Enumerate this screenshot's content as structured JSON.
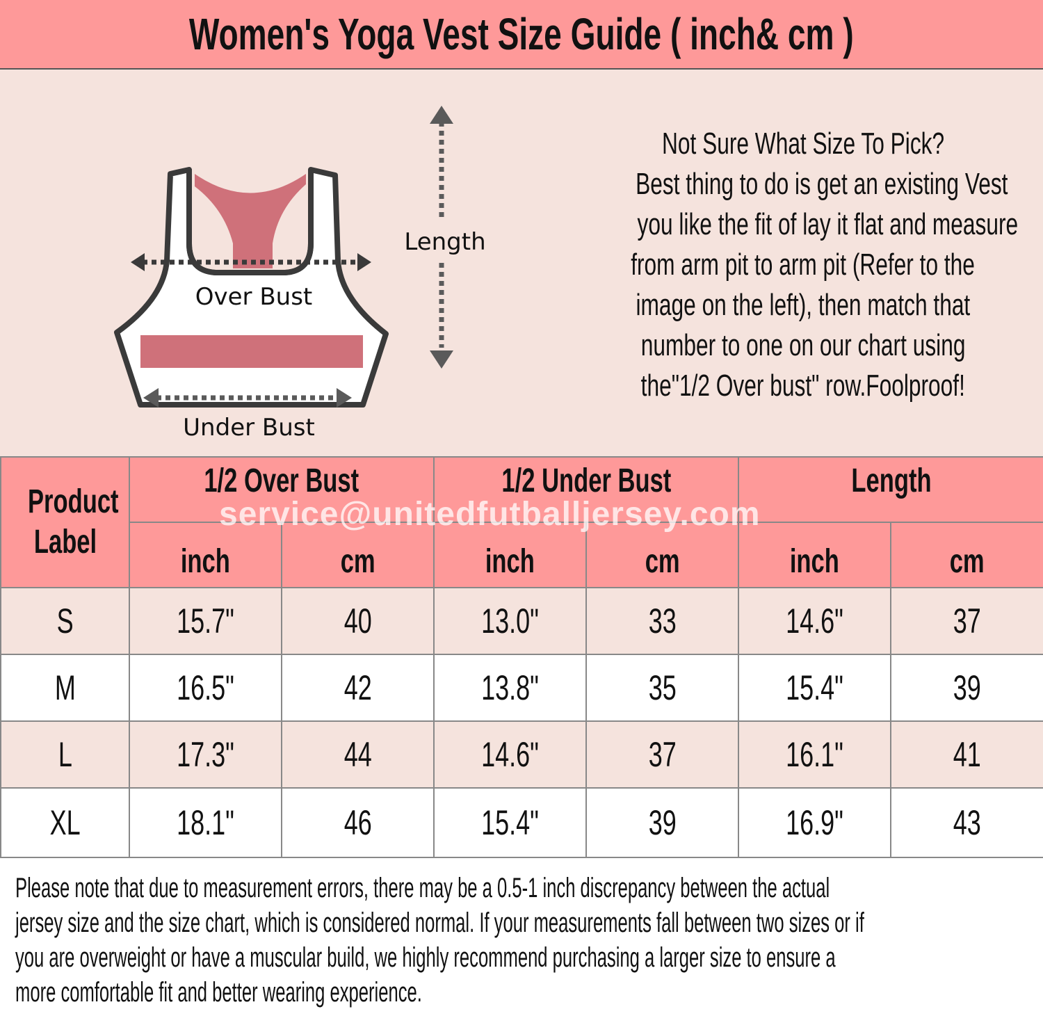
{
  "title": "Women's Yoga Vest Size Guide ( inch& cm )",
  "illustration": {
    "over_bust_label": "Over Bust",
    "under_bust_label": "Under Bust",
    "length_label": "Length",
    "colors": {
      "accent_pink": "#cf717a",
      "outline": "#3a3a3a",
      "arrow": "#5a5a5a"
    }
  },
  "tip_lines": [
    "Not Sure What Size To Pick?",
    "Best thing to do is get an existing Vest",
    "you like the fit of lay it flat and measure",
    "from arm pit to arm pit (Refer to the",
    "image on the left), then match that",
    "number to one on our chart using",
    "the\"1/2 Over bust\" row.Foolproof!"
  ],
  "table": {
    "product_label": "Product Label",
    "groups": [
      "1/2  Over Bust",
      "1/2  Under Bust",
      "Length"
    ],
    "units": [
      "inch",
      "cm",
      "inch",
      "cm",
      "inch",
      "cm"
    ],
    "rows": [
      [
        "S",
        "15.7\"",
        "40",
        "13.0\"",
        "33",
        "14.6\"",
        "37"
      ],
      [
        "M",
        "16.5\"",
        "42",
        "13.8\"",
        "35",
        "15.4\"",
        "39"
      ],
      [
        "L",
        "17.3\"",
        "44",
        "14.6\"",
        "37",
        "16.1\"",
        "41"
      ],
      [
        "XL",
        "18.1\"",
        "46",
        "15.4\"",
        "39",
        "16.9\"",
        "43"
      ]
    ]
  },
  "watermark": "service@unitedfutballjersey.com",
  "note_lines": [
    "Please note that due to measurement errors, there may be a 0.5-1 inch discrepancy between the actual",
    "jersey size and the size chart, which is considered normal. If your measurements fall between two sizes or if",
    "you are overweight or have a muscular build, we highly recommend purchasing a larger size to ensure a",
    "more comfortable fit and better wearing experience."
  ],
  "colors": {
    "header_bg": "#fe9999",
    "light_row": "#f5e3dd",
    "white_row": "#ffffff"
  }
}
